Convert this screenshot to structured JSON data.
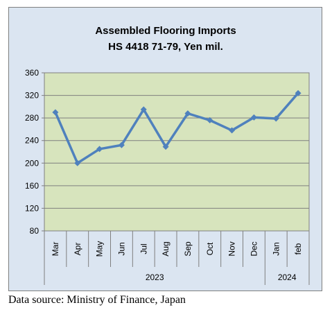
{
  "chart_data": {
    "type": "line",
    "title": "Assembled Flooring Imports",
    "subtitle": "HS 4418 71-79, Yen mil.",
    "categories": [
      "Mar",
      "Apr",
      "May",
      "Jun",
      "Jul",
      "Aug",
      "Sep",
      "Oct",
      "Nov",
      "Dec",
      "Jan",
      "feb"
    ],
    "category_groups": [
      {
        "label": "2023",
        "count": 10
      },
      {
        "label": "2024",
        "count": 2
      }
    ],
    "series": [
      {
        "values": [
          290,
          200,
          225,
          232,
          295,
          229,
          288,
          276,
          258,
          281,
          279,
          324
        ]
      }
    ],
    "ylim": [
      80,
      360
    ],
    "yticks": [
      80,
      120,
      160,
      200,
      240,
      280,
      320,
      360
    ],
    "grid": true,
    "colors": {
      "plot_background": "#d7e4bd",
      "chart_background": "#dbe5f1",
      "line": "#4f81bd",
      "grid": "#7f7f7f"
    }
  },
  "source_note": "Data source: Ministry of Finance, Japan"
}
